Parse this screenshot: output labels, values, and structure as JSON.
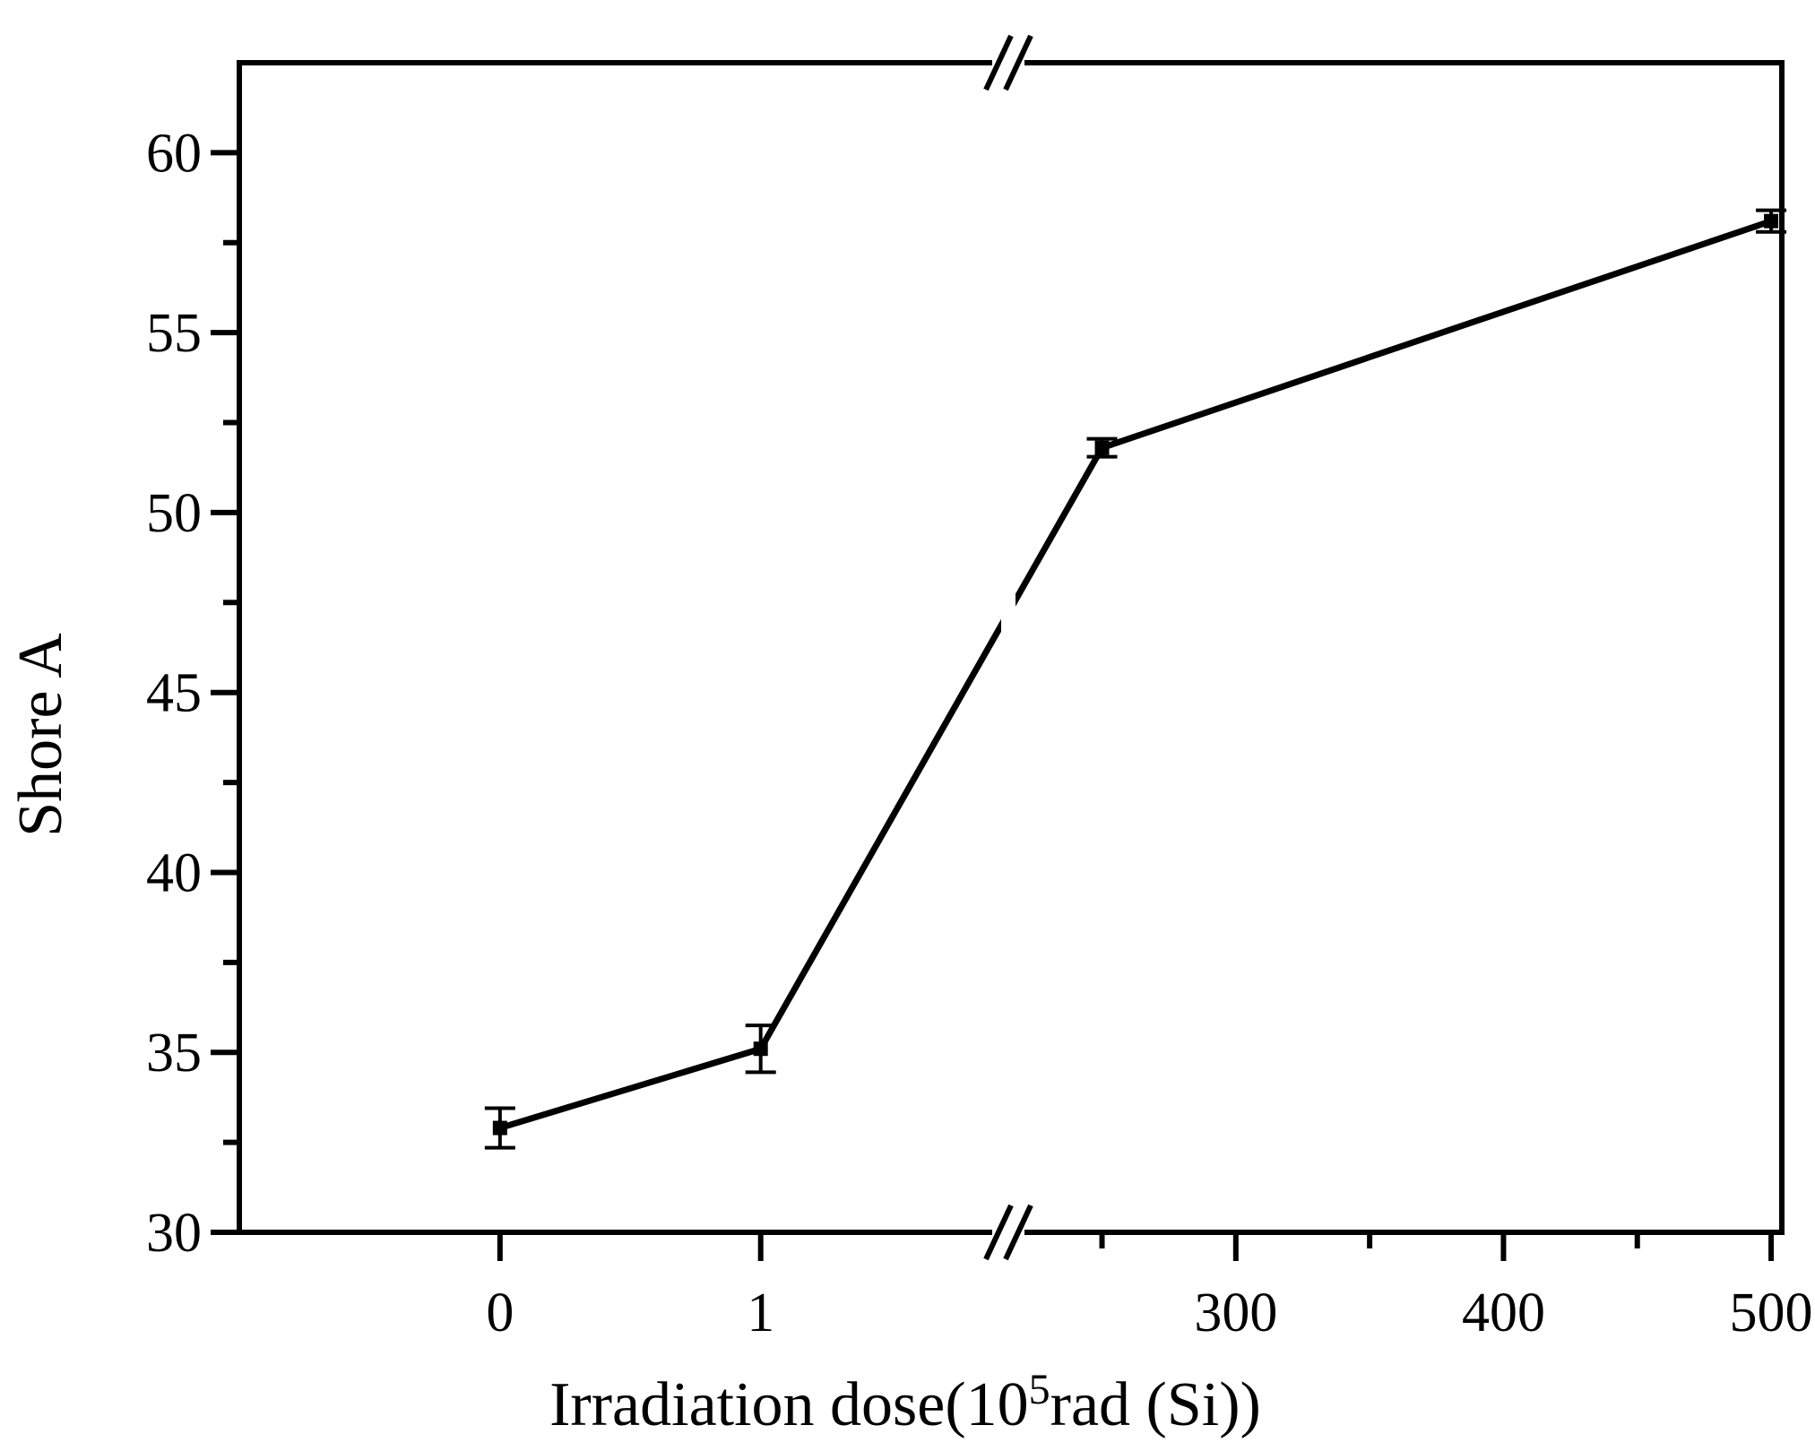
{
  "chart_data": {
    "type": "line",
    "title": "",
    "xlabel": {
      "prefix": "Irradiation dose(10",
      "superscript": "5",
      "suffix": "rad (Si))"
    },
    "ylabel": "Shore A",
    "ylim": [
      30,
      62.5
    ],
    "y_ticks": [
      30,
      35,
      40,
      45,
      50,
      55,
      60
    ],
    "x_broken_axis": true,
    "x_segments": [
      {
        "range": [
          -1,
          1.95
        ],
        "ticks": [
          0,
          1
        ]
      },
      {
        "range": [
          215,
          504
        ],
        "ticks": [
          300,
          400,
          500
        ]
      }
    ],
    "series": [
      {
        "name": "Shore A",
        "x": [
          0,
          1,
          250,
          500
        ],
        "y": [
          32.9,
          35.1,
          51.8,
          58.1
        ],
        "err": [
          0.55,
          0.65,
          0.25,
          0.3
        ]
      }
    ],
    "grid": false,
    "legend": "none",
    "color": "#000000"
  }
}
